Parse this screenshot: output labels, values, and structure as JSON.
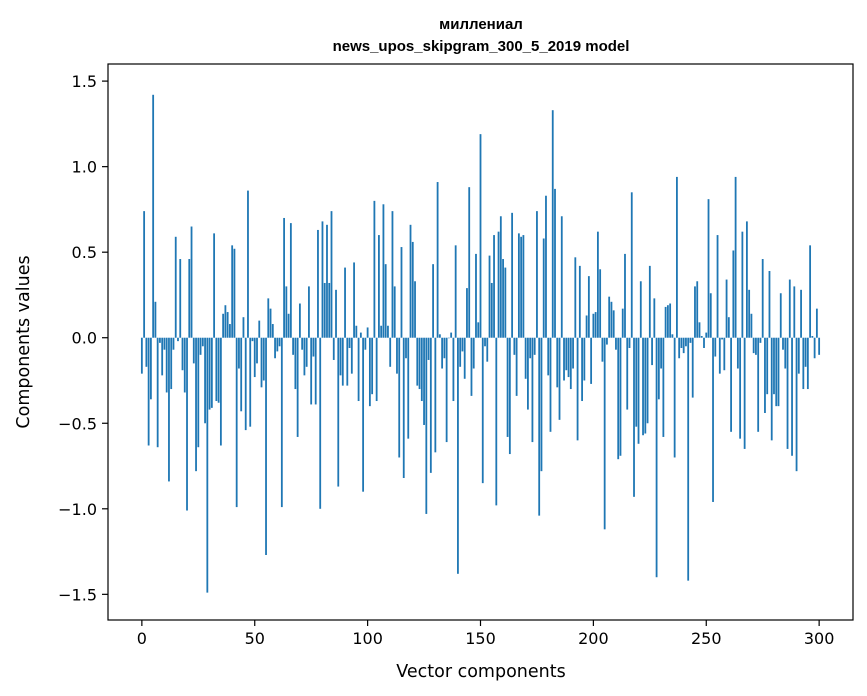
{
  "chart_data": {
    "type": "bar",
    "title_lines": [
      "миллениал",
      "news_upos_skipgram_300_5_2019 model"
    ],
    "xlabel": "Vector components",
    "ylabel": "Components values",
    "xlim": [
      -15,
      315
    ],
    "ylim": [
      -1.65,
      1.6
    ],
    "xticks": [
      0,
      50,
      100,
      150,
      200,
      250,
      300
    ],
    "xtick_labels": [
      "0",
      "50",
      "100",
      "150",
      "200",
      "250",
      "300"
    ],
    "yticks": [
      -1.5,
      -1.0,
      -0.5,
      0.0,
      0.5,
      1.0,
      1.5
    ],
    "ytick_labels": [
      "−1.5",
      "−1.0",
      "−0.5",
      "0.0",
      "0.5",
      "1.0",
      "1.5"
    ],
    "grid": false,
    "bar_color": "#1f77b4",
    "x_start": 0,
    "values": [
      -0.21,
      0.74,
      -0.17,
      -0.63,
      -0.36,
      1.42,
      0.21,
      -0.64,
      -0.03,
      -0.22,
      -0.07,
      -0.32,
      -0.84,
      -0.3,
      -0.07,
      0.59,
      -0.02,
      0.46,
      -0.19,
      -0.32,
      -1.01,
      0.46,
      0.65,
      -0.15,
      -0.78,
      -0.64,
      -0.1,
      -0.05,
      -0.5,
      -1.49,
      -0.42,
      -0.41,
      0.61,
      -0.37,
      -0.38,
      -0.63,
      0.14,
      0.19,
      0.15,
      0.08,
      0.54,
      0.52,
      -0.99,
      -0.18,
      -0.43,
      0.12,
      -0.54,
      0.86,
      -0.52,
      -0.02,
      -0.23,
      -0.15,
      0.1,
      -0.29,
      -0.25,
      -1.27,
      0.23,
      0.17,
      0.08,
      -0.12,
      -0.08,
      -0.05,
      -0.99,
      0.7,
      0.3,
      0.14,
      0.67,
      -0.1,
      -0.3,
      -0.58,
      0.2,
      -0.07,
      -0.22,
      -0.17,
      0.3,
      -0.39,
      -0.11,
      -0.39,
      0.63,
      -1.0,
      0.68,
      0.32,
      0.66,
      0.32,
      0.74,
      -0.13,
      0.28,
      -0.87,
      -0.22,
      -0.28,
      0.41,
      -0.28,
      -0.06,
      -0.21,
      0.44,
      0.07,
      -0.37,
      0.03,
      -0.9,
      -0.07,
      0.06,
      -0.4,
      -0.33,
      0.8,
      -0.37,
      0.6,
      0.07,
      0.78,
      0.43,
      0.07,
      -0.17,
      0.74,
      0.3,
      -0.21,
      -0.7,
      0.53,
      -0.82,
      -0.12,
      -0.59,
      0.66,
      0.56,
      0.33,
      -0.28,
      -0.3,
      -0.37,
      -0.51,
      -1.03,
      -0.13,
      -0.79,
      0.43,
      -0.67,
      0.91,
      0.02,
      -0.18,
      -0.12,
      -0.61,
      0.0,
      0.03,
      -0.37,
      0.54,
      -1.38,
      -0.17,
      -0.08,
      -0.24,
      0.29,
      0.88,
      -0.34,
      -0.18,
      0.49,
      0.09,
      1.19,
      -0.85,
      -0.05,
      -0.14,
      0.48,
      0.32,
      0.6,
      -0.98,
      0.62,
      0.71,
      0.46,
      0.41,
      -0.58,
      -0.68,
      0.73,
      -0.1,
      -0.34,
      0.61,
      0.59,
      0.6,
      -0.24,
      -0.42,
      -0.12,
      -0.61,
      -0.1,
      0.74,
      -1.04,
      -0.78,
      0.58,
      0.83,
      -0.22,
      -0.55,
      1.33,
      0.87,
      -0.29,
      -0.48,
      0.71,
      -0.25,
      -0.19,
      -0.23,
      -0.3,
      -0.18,
      0.47,
      -0.6,
      0.42,
      -0.37,
      -0.25,
      0.13,
      0.36,
      -0.27,
      0.14,
      0.15,
      0.62,
      0.4,
      -0.14,
      -1.12,
      -0.04,
      0.24,
      0.21,
      0.16,
      -0.07,
      -0.71,
      -0.69,
      0.17,
      0.49,
      -0.42,
      -0.06,
      0.85,
      -0.93,
      -0.52,
      -0.62,
      0.33,
      -0.57,
      -0.56,
      -0.5,
      0.42,
      -0.16,
      0.23,
      -1.4,
      -0.36,
      -0.18,
      -0.58,
      0.18,
      0.19,
      0.2,
      0.02,
      -0.7,
      0.94,
      -0.12,
      -0.06,
      -0.09,
      -0.05,
      -1.42,
      -0.03,
      -0.35,
      0.3,
      0.33,
      0.09,
      0.01,
      -0.06,
      0.03,
      0.81,
      0.26,
      -0.96,
      -0.11,
      0.6,
      -0.21,
      -0.01,
      -0.19,
      0.34,
      0.12,
      -0.55,
      0.51,
      0.94,
      -0.18,
      -0.59,
      0.62,
      -0.65,
      0.68,
      0.28,
      0.14,
      -0.09,
      -0.1,
      -0.55,
      -0.03,
      0.46,
      -0.44,
      -0.33,
      0.39,
      -0.6,
      -0.33,
      -0.4,
      -0.4,
      0.26,
      -0.07,
      -0.18,
      -0.65,
      0.34,
      -0.69,
      0.3,
      -0.78,
      -0.21,
      0.28,
      -0.3,
      -0.17,
      -0.3,
      0.54,
      0.01,
      -0.12,
      0.17,
      -0.1
    ]
  }
}
